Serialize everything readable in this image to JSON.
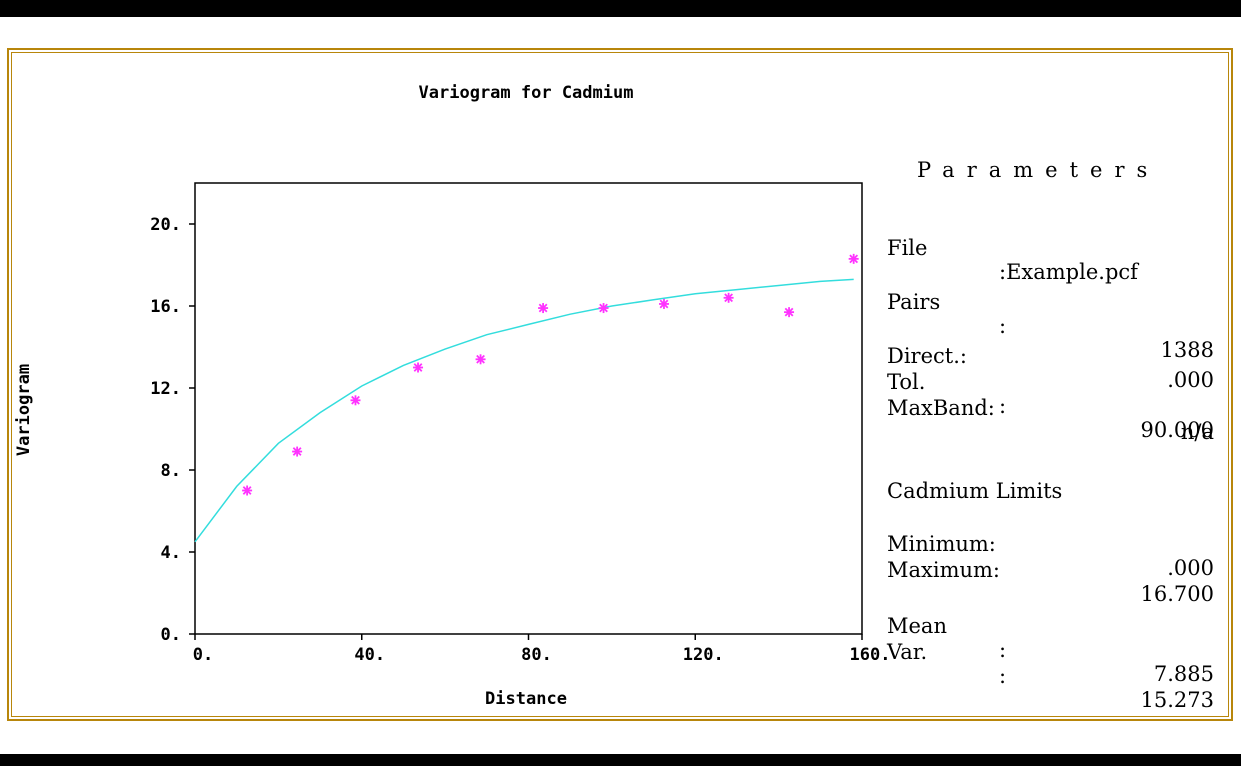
{
  "chart_data": {
    "type": "scatter",
    "title": "Variogram for Cadmium",
    "xlabel": "Distance",
    "ylabel": "Variogram",
    "xlim": [
      0,
      160
    ],
    "ylim": [
      0,
      22
    ],
    "xticks": [
      "0.",
      "40.",
      "80.",
      "120.",
      "160."
    ],
    "xtick_values": [
      0,
      40,
      80,
      120,
      160
    ],
    "yticks": [
      "0.",
      "4.",
      "8.",
      "12.",
      "16.",
      "20."
    ],
    "ytick_values": [
      0,
      4,
      8,
      12,
      16,
      20
    ],
    "grid": false,
    "points": [
      {
        "x": 12.5,
        "y": 7.0
      },
      {
        "x": 24.5,
        "y": 8.9
      },
      {
        "x": 38.5,
        "y": 11.4
      },
      {
        "x": 53.5,
        "y": 13.0
      },
      {
        "x": 68.5,
        "y": 13.4
      },
      {
        "x": 83.5,
        "y": 15.9
      },
      {
        "x": 98.0,
        "y": 15.9
      },
      {
        "x": 112.5,
        "y": 16.1
      },
      {
        "x": 128.0,
        "y": 16.4
      },
      {
        "x": 142.5,
        "y": 15.7
      },
      {
        "x": 158.0,
        "y": 18.3
      }
    ],
    "model_curve": {
      "x": [
        0,
        10,
        20,
        30,
        40,
        50,
        60,
        70,
        80,
        90,
        100,
        110,
        120,
        130,
        140,
        150,
        158
      ],
      "y": [
        4.5,
        7.2,
        9.3,
        10.8,
        12.1,
        13.1,
        13.9,
        14.6,
        15.1,
        15.6,
        16.0,
        16.3,
        16.6,
        16.8,
        17.0,
        17.2,
        17.3
      ]
    },
    "point_color": "#ff33ff",
    "curve_color": "#33dddd"
  },
  "parameters": {
    "title": "Parameters",
    "file_label": "File",
    "file_value": ":Example.pcf",
    "pairs_label": "Pairs",
    "pairs_sep": ":",
    "pairs_value": "1388",
    "direct_label": "Direct.:",
    "direct_value": ".000",
    "tol_label": "Tol.",
    "tol_sep": ":",
    "tol_value": "90.000",
    "maxband_label": "MaxBand:",
    "maxband_value": "n/a",
    "limits_header": "Cadmium Limits",
    "minimum_label": "Minimum:",
    "minimum_value": ".000",
    "maximum_label": "Maximum:",
    "maximum_value": "16.700",
    "mean_label": "Mean",
    "mean_sep": ":",
    "mean_value": "7.885",
    "var_label": "Var.",
    "var_sep": ":",
    "var_value": "15.273"
  },
  "colors": {
    "frame": "#b8860b",
    "band": "#000000"
  }
}
